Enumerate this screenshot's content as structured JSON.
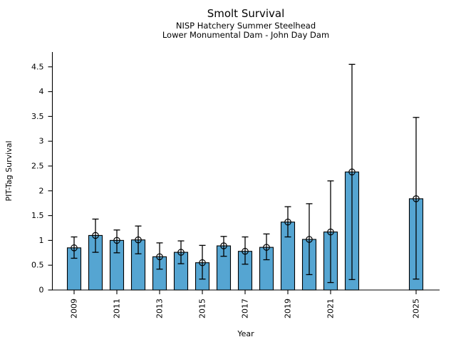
{
  "chart_data": {
    "type": "bar",
    "title": "Smolt Survival",
    "subtitle1": "NISP Hatchery Summer Steelhead",
    "subtitle2": "Lower Monumental Dam - John Day Dam",
    "xlabel": "Year",
    "ylabel": "PIT-Tag Survival",
    "ylim": [
      0,
      4.8
    ],
    "grid": false,
    "legend": "none",
    "bar_color": "#55A5D2",
    "bar_edge_color": "#000000",
    "error_bar_color": "#000000",
    "marker": "open-circle",
    "ytick_labels": [
      "0",
      "0.5",
      "1",
      "1.5",
      "2",
      "2.5",
      "3",
      "3.5",
      "4",
      "4.5"
    ],
    "xtick_years": [
      2009,
      2011,
      2013,
      2015,
      2017,
      2019,
      2021,
      2025
    ],
    "points": [
      {
        "year": 2009,
        "value": 0.85,
        "err_low": 0.64,
        "err_high": 1.07
      },
      {
        "year": 2010,
        "value": 1.1,
        "err_low": 0.76,
        "err_high": 1.43
      },
      {
        "year": 2011,
        "value": 1.0,
        "err_low": 0.75,
        "err_high": 1.21
      },
      {
        "year": 2012,
        "value": 1.01,
        "err_low": 0.73,
        "err_high": 1.29
      },
      {
        "year": 2013,
        "value": 0.67,
        "err_low": 0.42,
        "err_high": 0.95
      },
      {
        "year": 2014,
        "value": 0.76,
        "err_low": 0.53,
        "err_high": 0.99
      },
      {
        "year": 2015,
        "value": 0.55,
        "err_low": 0.22,
        "err_high": 0.9
      },
      {
        "year": 2016,
        "value": 0.89,
        "err_low": 0.68,
        "err_high": 1.08
      },
      {
        "year": 2017,
        "value": 0.78,
        "err_low": 0.52,
        "err_high": 1.07
      },
      {
        "year": 2018,
        "value": 0.86,
        "err_low": 0.61,
        "err_high": 1.13
      },
      {
        "year": 2019,
        "value": 1.37,
        "err_low": 1.07,
        "err_high": 1.68
      },
      {
        "year": 2020,
        "value": 1.02,
        "err_low": 0.31,
        "err_high": 1.74
      },
      {
        "year": 2021,
        "value": 1.17,
        "err_low": 0.15,
        "err_high": 2.2
      },
      {
        "year": 2022,
        "value": 2.38,
        "err_low": 0.21,
        "err_high": 4.55
      },
      {
        "year": 2025,
        "value": 1.84,
        "err_low": 0.22,
        "err_high": 3.48
      }
    ]
  }
}
